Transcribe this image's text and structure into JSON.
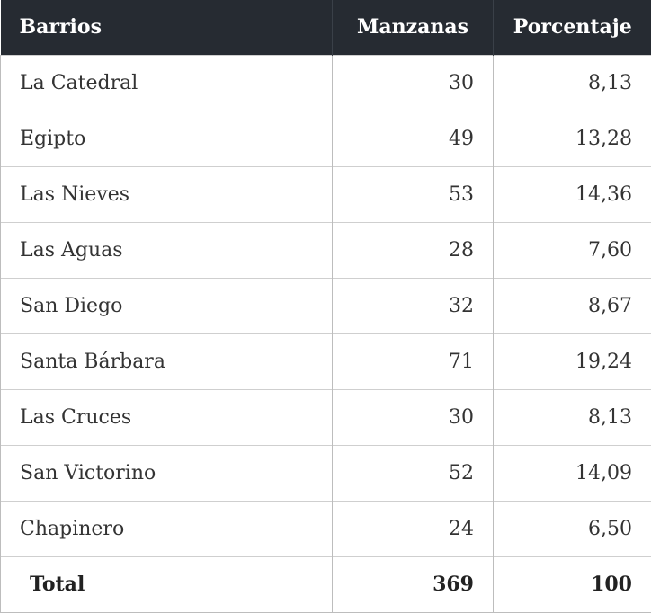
{
  "table": {
    "headers": [
      "Barrios",
      "Manzanas",
      "Porcentaje"
    ],
    "rows": [
      [
        "La Catedral",
        "30",
        "8,13"
      ],
      [
        "Egipto",
        "49",
        "13,28"
      ],
      [
        "Las Nieves",
        "53",
        "14,36"
      ],
      [
        "Las Aguas",
        "28",
        "7,60"
      ],
      [
        "San Diego",
        "32",
        "8,67"
      ],
      [
        "Santa Bárbara",
        "71",
        "19,24"
      ],
      [
        "Las Cruces",
        "30",
        "8,13"
      ],
      [
        "San Victorino",
        "52",
        "14,09"
      ],
      [
        "Chapinero",
        "24",
        "6,50"
      ]
    ],
    "total": [
      "Total",
      "369",
      "100"
    ]
  },
  "colors": {
    "header_background": "#262b32",
    "header_text": "#ffffff",
    "grid_lines": "#bdbdbd"
  }
}
